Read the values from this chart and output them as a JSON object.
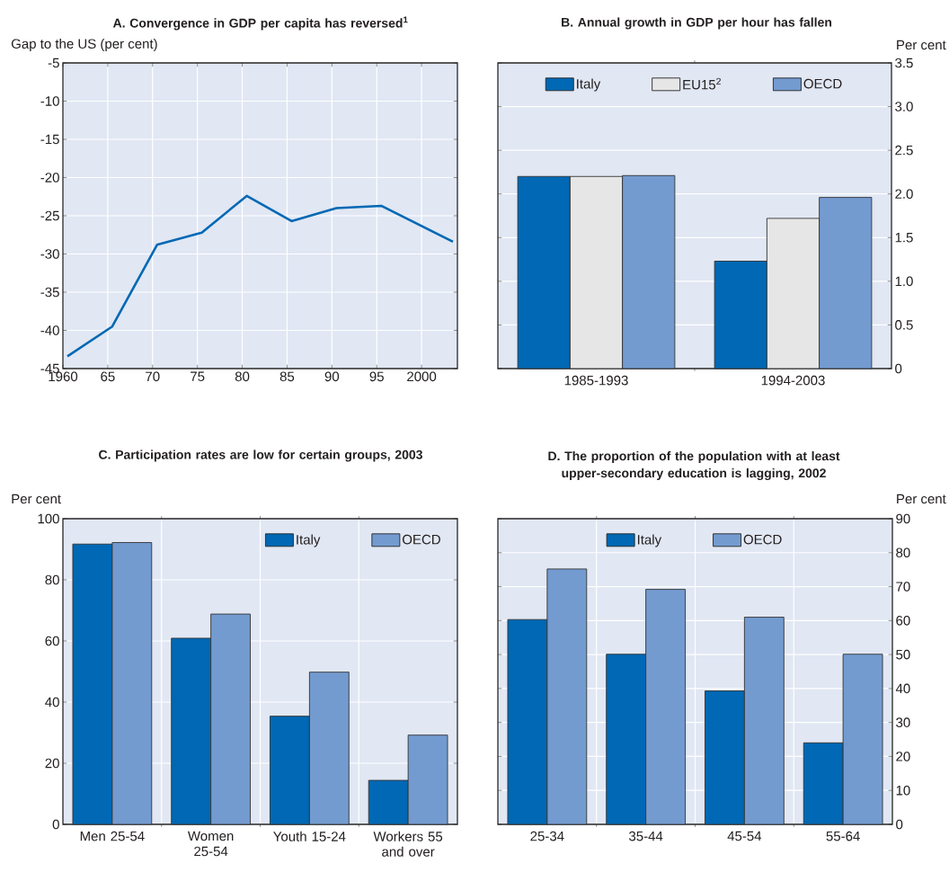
{
  "chart_data": [
    {
      "type": "line",
      "title": "A. Convergence in GDP per capita has reversed$^{1}$",
      "ylabel": "Gap to the US (per cent)",
      "x": [
        1960.5,
        1965.5,
        1970.5,
        1975.5,
        1980.5,
        1985.5,
        1990.5,
        1995.5,
        2003.5
      ],
      "series": [
        {
          "color": "#0068b4",
          "values": [
            -43.4,
            -39.5,
            -28.8,
            -27.2,
            -22.4,
            -25.7,
            -24.0,
            -23.7,
            -28.4
          ]
        }
      ],
      "xlim": [
        1960,
        2004
      ],
      "xticks": [
        1960,
        {
          "value": 1965,
          "label": "65"
        },
        {
          "value": 1970,
          "label": "70"
        },
        {
          "value": 1975,
          "label": "75"
        },
        {
          "value": 1980,
          "label": "80"
        },
        {
          "value": 1985,
          "label": "85"
        },
        {
          "value": 1990,
          "label": "90"
        },
        {
          "value": 1995,
          "label": "95"
        },
        2000
      ],
      "ylim": [
        -45,
        -5
      ],
      "yticks": [
        -45,
        -40,
        -35,
        -30,
        -25,
        -20,
        -15,
        -10,
        -5
      ],
      "grid": true,
      "line_style": "solid"
    },
    {
      "type": "bar",
      "title": "B. Annual growth in GDP per hour has fallen",
      "ylabel": "Per cent",
      "categories": [
        "1985-1993",
        "1994-2003"
      ],
      "series": [
        {
          "name": "Italy",
          "color": "#0068b4",
          "values": [
            2.2,
            1.23
          ]
        },
        {
          "name": "EU15$^{2}$",
          "color": "#e6e6e6",
          "values": [
            2.2,
            1.72
          ]
        },
        {
          "name": "OECD",
          "color": "#739bd0",
          "values": [
            2.21,
            1.96
          ]
        }
      ],
      "ylim": [
        0,
        3.5
      ],
      "yticks": [
        0,
        0.5,
        {
          "value": 1,
          "label": "1.0"
        },
        1.5,
        {
          "value": 2,
          "label": "2.0"
        },
        2.5,
        {
          "value": 3,
          "label": "3.0"
        },
        3.5
      ],
      "grid": "y",
      "legend": "top"
    },
    {
      "type": "bar",
      "title": "C.  Participation rates are low for certain groups, 2003",
      "ylabel": "Per cent",
      "categories": [
        "Men 25-54",
        "Women 25-54",
        "Youth 15-24",
        "Workers 55 and over"
      ],
      "series": [
        {
          "name": "Italy",
          "color": "#0068b4",
          "values": [
            91.7,
            60.9,
            35.4,
            14.4
          ]
        },
        {
          "name": "OECD",
          "color": "#739bd0",
          "values": [
            92.2,
            68.8,
            49.8,
            29.2
          ]
        }
      ],
      "ylim": [
        0,
        100
      ],
      "yticks": [
        0,
        20,
        40,
        60,
        80,
        100
      ],
      "grid": true,
      "legend": "top right"
    },
    {
      "type": "bar",
      "title": "D. The proportion of the population with at least upper-secondary education is lagging, 2002",
      "ylabel": "Per cent",
      "categories": [
        "25-34",
        "35-44",
        "45-54",
        "55-64"
      ],
      "series": [
        {
          "name": "Italy",
          "color": "#0068b4",
          "values": [
            60.3,
            50.1,
            39.3,
            24.0
          ]
        },
        {
          "name": "OECD",
          "color": "#739bd0",
          "values": [
            75.2,
            69.2,
            61.0,
            50.1
          ]
        }
      ],
      "ylim": [
        0,
        90
      ],
      "yticks": [
        0,
        10,
        20,
        30,
        40,
        50,
        60,
        70,
        80,
        90
      ],
      "grid": true,
      "legend": "top"
    }
  ]
}
